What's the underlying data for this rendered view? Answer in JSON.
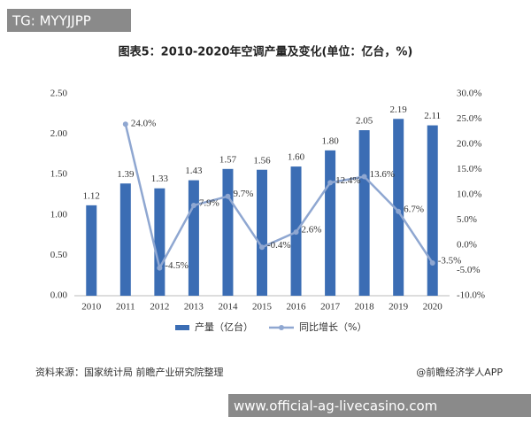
{
  "header_tag": "TG: MYYJJPP",
  "footer_banner": "www.official-ag-livecasino.com",
  "chart_data": {
    "type": "bar",
    "title": "图表5：2010-2020年空调产量及变化(单位：亿台，%)",
    "categories": [
      "2010",
      "2011",
      "2012",
      "2013",
      "2014",
      "2015",
      "2016",
      "2017",
      "2018",
      "2019",
      "2020"
    ],
    "series": [
      {
        "name": "产量（亿台）",
        "type": "bar",
        "color": "#3b6db4",
        "values": [
          1.12,
          1.39,
          1.33,
          1.43,
          1.57,
          1.56,
          1.6,
          1.8,
          2.05,
          2.19,
          2.11
        ],
        "value_labels": [
          "1.12",
          "1.39",
          "1.33",
          "1.43",
          "1.57",
          "1.56",
          "1.60",
          "1.80",
          "2.05",
          "2.19",
          "2.11"
        ]
      },
      {
        "name": "同比增长（%）",
        "type": "line",
        "axis": "y2",
        "color": "#8fa7d1",
        "values": [
          null,
          24.0,
          -4.5,
          7.9,
          9.7,
          -0.4,
          2.6,
          12.4,
          13.6,
          6.7,
          -3.5
        ],
        "value_labels": [
          null,
          "24.0%",
          "-4.5%",
          "7.9%",
          "9.7%",
          "-0.4%",
          "2.6%",
          "12.4%",
          "13.6%",
          "6.7%",
          "-3.5%"
        ]
      }
    ],
    "ylim": [
      0,
      2.5
    ],
    "yticks": [
      {
        "value": 0,
        "label": "0.00"
      },
      {
        "value": 0.5,
        "label": "0.50"
      },
      {
        "value": 1,
        "label": "1.00"
      },
      {
        "value": 1.5,
        "label": "1.50"
      },
      {
        "value": 2,
        "label": "2.00"
      },
      {
        "value": 2.5,
        "label": "2.50"
      }
    ],
    "y2lim": [
      -10,
      30
    ],
    "y2ticks": [
      {
        "value": -10,
        "label": "-10.0%"
      },
      {
        "value": -5,
        "label": "-5.0%"
      },
      {
        "value": 0,
        "label": "0.0%"
      },
      {
        "value": 5,
        "label": "5.0%"
      },
      {
        "value": 10,
        "label": "10.0%"
      },
      {
        "value": 15,
        "label": "15.0%"
      },
      {
        "value": 20,
        "label": "20.0%"
      },
      {
        "value": 25,
        "label": "25.0%"
      },
      {
        "value": 30,
        "label": "30.0%"
      }
    ],
    "grid": false,
    "legend": "bottom",
    "source": "资料来源：国家统计局 前瞻产业研究院整理",
    "credit": "@前瞻经济学人APP"
  }
}
